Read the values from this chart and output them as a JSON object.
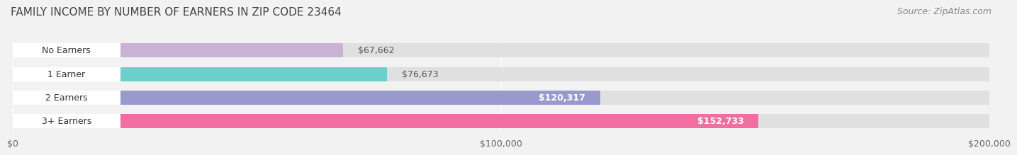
{
  "title": "FAMILY INCOME BY NUMBER OF EARNERS IN ZIP CODE 23464",
  "source": "Source: ZipAtlas.com",
  "categories": [
    "No Earners",
    "1 Earner",
    "2 Earners",
    "3+ Earners"
  ],
  "values": [
    67662,
    76673,
    120317,
    152733
  ],
  "labels": [
    "$67,662",
    "$76,673",
    "$120,317",
    "$152,733"
  ],
  "bar_colors": [
    "#c9b3d5",
    "#6dcfcc",
    "#9999cc",
    "#f06fa0"
  ],
  "label_colors": [
    "#555555",
    "#555555",
    "#ffffff",
    "#ffffff"
  ],
  "xlim": [
    0,
    200000
  ],
  "xticks": [
    0,
    100000,
    200000
  ],
  "xticklabels": [
    "$0",
    "$100,000",
    "$200,000"
  ],
  "background_color": "#f2f2f2",
  "bar_bg_color": "#e0e0e0",
  "title_fontsize": 11,
  "source_fontsize": 9,
  "label_fontsize": 9,
  "tick_fontsize": 9,
  "category_fontsize": 9
}
